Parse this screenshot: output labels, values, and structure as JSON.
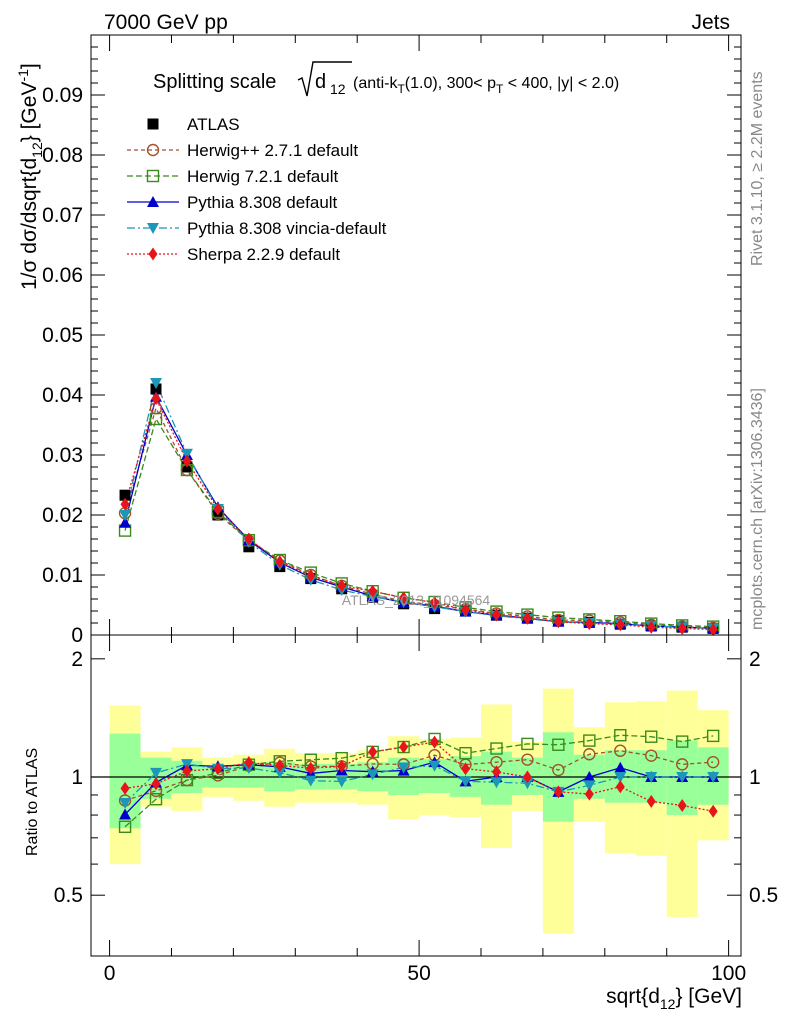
{
  "header": {
    "left": "7000 GeV pp",
    "right": "Jets"
  },
  "side_labels": {
    "rivet": "Rivet 3.1.10, ≥ 2.2M events",
    "mcplots": "mcplots.cern.ch [arXiv:1306.3436]"
  },
  "watermark": "ATLAS_2013_I1094564",
  "chart_data": {
    "type": "scatter",
    "title": "Splitting scale √d12 (anti-kT(1.0), 300< pT < 400, |y| < 2.0)",
    "title_parts": {
      "lead": "Splitting scale",
      "sqrt_arg": "d",
      "sqrt_sub": "12",
      "rest_1": " (anti-k",
      "rest_sub_t": "T",
      "rest_2": "(1.0), 300< p",
      "rest_sub_t2": "T",
      "rest_3": " < 400, |y| < 2.0)"
    },
    "xlabel": "sqrt{d_12} [GeV]",
    "xlabel_parts": {
      "main": "sqrt{d",
      "sub": "12",
      "end": "} [GeV]"
    },
    "ylabel": "1/σ dσ/dsqrt{d_12} [GeV^-1]",
    "ylabel_parts": {
      "main": "1/σ dσ/dsqrt{d",
      "sub": "12",
      "mid": "} [GeV",
      "sup": "-1",
      "end": "]"
    },
    "ratio_ylabel": "Ratio to ATLAS",
    "xlim": [
      -3,
      102
    ],
    "ylim": [
      0,
      0.1
    ],
    "ratio_ylim": [
      0.35,
      2.3
    ],
    "xticks": [
      0,
      50,
      100
    ],
    "yticks": [
      0,
      0.01,
      0.02,
      0.03,
      0.04,
      0.05,
      0.06,
      0.07,
      0.08,
      0.09
    ],
    "ytick_labels": [
      "0",
      "0.01",
      "0.02",
      "0.03",
      "0.04",
      "0.05",
      "0.06",
      "0.07",
      "0.08",
      "0.09"
    ],
    "ratio_yticks": [
      0.5,
      1,
      2
    ],
    "ratio_ytick_labels": [
      "0.5",
      "1",
      "2"
    ],
    "legend_placement": "top-left",
    "x": [
      2.5,
      7.5,
      12.5,
      17.5,
      22.5,
      27.5,
      32.5,
      37.5,
      42.5,
      47.5,
      52.5,
      57.5,
      62.5,
      67.5,
      72.5,
      77.5,
      82.5,
      87.5,
      92.5,
      97.5
    ],
    "data": {
      "name": "ATLAS",
      "color": "#000000",
      "values": [
        0.0233,
        0.041,
        0.028,
        0.02,
        0.0147,
        0.0114,
        0.0094,
        0.0077,
        0.0063,
        0.0052,
        0.0044,
        0.004,
        0.0033,
        0.0028,
        0.0024,
        0.0021,
        0.0018,
        0.0015,
        0.0013,
        0.0011
      ]
    },
    "band_inner": [
      [
        0.74,
        1.29
      ],
      [
        0.88,
        1.12
      ],
      [
        0.91,
        1.1
      ],
      [
        0.94,
        1.07
      ],
      [
        0.94,
        1.07
      ],
      [
        0.92,
        1.09
      ],
      [
        0.93,
        1.08
      ],
      [
        0.93,
        1.08
      ],
      [
        0.92,
        1.09
      ],
      [
        0.9,
        1.12
      ],
      [
        0.91,
        1.11
      ],
      [
        0.89,
        1.13
      ],
      [
        0.85,
        1.16
      ],
      [
        0.9,
        1.12
      ],
      [
        0.77,
        1.3
      ],
      [
        0.88,
        1.14
      ],
      [
        0.86,
        1.17
      ],
      [
        0.86,
        1.17
      ],
      [
        0.8,
        1.24
      ],
      [
        0.85,
        1.19
      ]
    ],
    "band_outer": [
      [
        0.6,
        1.52
      ],
      [
        0.84,
        1.16
      ],
      [
        0.82,
        1.19
      ],
      [
        0.89,
        1.12
      ],
      [
        0.87,
        1.14
      ],
      [
        0.84,
        1.18
      ],
      [
        0.86,
        1.15
      ],
      [
        0.86,
        1.15
      ],
      [
        0.85,
        1.17
      ],
      [
        0.78,
        1.27
      ],
      [
        0.8,
        1.25
      ],
      [
        0.79,
        1.26
      ],
      [
        0.66,
        1.53
      ],
      [
        0.82,
        1.23
      ],
      [
        0.4,
        1.68
      ],
      [
        0.77,
        1.34
      ],
      [
        0.64,
        1.55
      ],
      [
        0.63,
        1.56
      ],
      [
        0.44,
        1.66
      ],
      [
        0.69,
        1.48
      ]
    ],
    "series": [
      {
        "name": "Herwig++ 2.7.1 default",
        "color": "#a0522d",
        "marker": "open-circle",
        "dash": "4,3",
        "values": [
          0.0203,
          0.0378,
          0.0275,
          0.0202,
          0.0157,
          0.0124,
          0.01,
          0.0082,
          0.0068,
          0.0056,
          0.005,
          0.0043,
          0.0036,
          0.0031,
          0.0025,
          0.0024,
          0.0021,
          0.0017,
          0.0014,
          0.0012
        ]
      },
      {
        "name": "Herwig 7.2.1 default",
        "color": "#3a8a1c",
        "marker": "open-square",
        "dash": "6,3",
        "values": [
          0.0174,
          0.036,
          0.0275,
          0.0205,
          0.0158,
          0.0125,
          0.0104,
          0.0086,
          0.0073,
          0.0062,
          0.0055,
          0.0046,
          0.0039,
          0.0034,
          0.0029,
          0.0026,
          0.0023,
          0.0019,
          0.0016,
          0.0014
        ]
      },
      {
        "name": "Pythia 8.308 default",
        "color": "#0000cc",
        "marker": "filled-triangle-up",
        "dash": "",
        "values": [
          0.0187,
          0.0397,
          0.03,
          0.0213,
          0.0158,
          0.0121,
          0.0096,
          0.008,
          0.0065,
          0.0054,
          0.0048,
          0.0039,
          0.0033,
          0.0028,
          0.0022,
          0.0021,
          0.0019,
          0.0015,
          0.0013,
          0.0011
        ]
      },
      {
        "name": "Pythia 8.308 vincia-default",
        "color": "#1c97b8",
        "marker": "filled-triangle-down",
        "dash": "8,3,2,3",
        "values": [
          0.02,
          0.042,
          0.0302,
          0.021,
          0.0155,
          0.0117,
          0.0092,
          0.0075,
          0.0064,
          0.0055,
          0.0047,
          0.0039,
          0.0032,
          0.0027,
          0.0022,
          0.002,
          0.0018,
          0.0015,
          0.0013,
          0.0011
        ]
      },
      {
        "name": "Sherpa 2.2.9 default",
        "color": "#e8141c",
        "marker": "filled-diamond",
        "dash": "2,2",
        "values": [
          0.0218,
          0.0394,
          0.029,
          0.021,
          0.016,
          0.0122,
          0.0099,
          0.0082,
          0.0073,
          0.0062,
          0.0054,
          0.0042,
          0.0034,
          0.0028,
          0.0022,
          0.0019,
          0.0017,
          0.0013,
          0.0011,
          0.0009
        ]
      }
    ]
  }
}
